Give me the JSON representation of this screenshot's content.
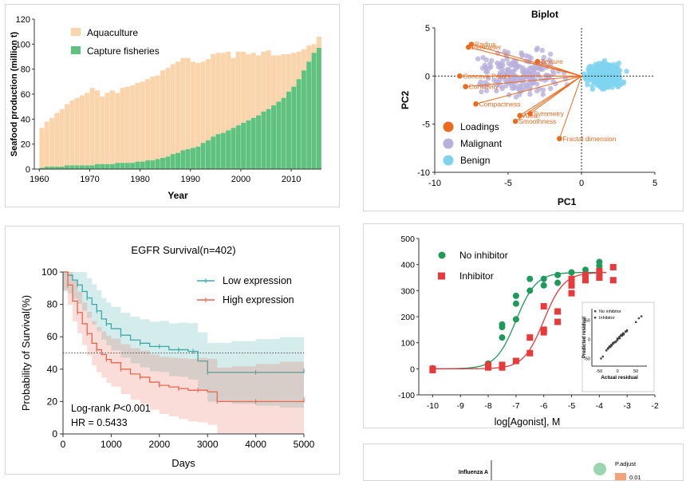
{
  "chart_data": [
    {
      "type": "area",
      "id": "seafood",
      "title": "",
      "xlabel": "Year",
      "ylabel": "Seafood production (million t)",
      "xlim": [
        1959,
        2016
      ],
      "ylim": [
        0,
        120
      ],
      "xticks": [
        "1960",
        "1970",
        "1980",
        "1990",
        "2000",
        "2010"
      ],
      "yticks": [
        "0",
        "20",
        "40",
        "60",
        "80",
        "100",
        "120"
      ],
      "colors": {
        "aquaculture": "#fbd4ab",
        "capture": "#5fc27e"
      },
      "legend": [
        {
          "name": "Aquaculture",
          "color": "#fbd4ab"
        },
        {
          "name": "Capture fisheries",
          "color": "#5fc27e"
        }
      ],
      "years": [
        1960,
        1961,
        1962,
        1963,
        1964,
        1965,
        1966,
        1967,
        1968,
        1969,
        1970,
        1971,
        1972,
        1973,
        1974,
        1975,
        1976,
        1977,
        1978,
        1979,
        1980,
        1981,
        1982,
        1983,
        1984,
        1985,
        1986,
        1987,
        1988,
        1989,
        1990,
        1991,
        1992,
        1993,
        1994,
        1995,
        1996,
        1997,
        1998,
        1999,
        2000,
        2001,
        2002,
        2003,
        2004,
        2005,
        2006,
        2007,
        2008,
        2009,
        2010,
        2011,
        2012,
        2013,
        2014,
        2015
      ],
      "capture": [
        1,
        2,
        2,
        2,
        2,
        3,
        3,
        3,
        3,
        3,
        3,
        4,
        4,
        4,
        4,
        5,
        5,
        5,
        5,
        6,
        6,
        7,
        7,
        8,
        9,
        10,
        12,
        13,
        15,
        16,
        17,
        18,
        21,
        23,
        26,
        28,
        29,
        31,
        33,
        35,
        37,
        39,
        41,
        43,
        46,
        48,
        51,
        54,
        57,
        62,
        66,
        72,
        79,
        86,
        93,
        97
      ],
      "total": [
        33,
        38,
        41,
        45,
        48,
        52,
        55,
        57,
        59,
        61,
        65,
        63,
        58,
        61,
        63,
        61,
        65,
        66,
        67,
        69,
        70,
        72,
        74,
        75,
        79,
        81,
        84,
        86,
        89,
        89,
        86,
        85,
        86,
        88,
        92,
        93,
        93,
        94,
        89,
        94,
        94,
        92,
        93,
        91,
        94,
        95,
        91,
        91,
        92,
        92,
        93,
        94,
        96,
        99,
        100,
        106
      ]
    },
    {
      "type": "scatter",
      "id": "biplot",
      "title": "Biplot",
      "xlabel": "PC1",
      "ylabel": "PC2",
      "xlim": [
        -10,
        5
      ],
      "ylim": [
        -10,
        5
      ],
      "xticks": [
        "-10",
        "-5",
        "0",
        "5"
      ],
      "yticks": [
        "5",
        "0",
        "-5",
        "-10"
      ],
      "legend": [
        {
          "name": "Loadings",
          "color": "#ec6a1e"
        },
        {
          "name": "Malignant",
          "color": "#b9b0dc"
        },
        {
          "name": "Benign",
          "color": "#7fd3ee"
        }
      ],
      "loadings": [
        {
          "name": "Radius",
          "x": -7.5,
          "y": 3.3
        },
        {
          "name": "Perimeter",
          "x": -7.7,
          "y": 3.0
        },
        {
          "name": "Texture",
          "x": -3.0,
          "y": 1.5
        },
        {
          "name": "Concave Points",
          "x": -8.3,
          "y": 0.0
        },
        {
          "name": "Concavity",
          "x": -7.9,
          "y": -1.1
        },
        {
          "name": "Compactness",
          "x": -7.2,
          "y": -2.9
        },
        {
          "name": "Area",
          "x": -4.2,
          "y": -4.1
        },
        {
          "name": "Smoothness",
          "x": -4.5,
          "y": -4.7
        },
        {
          "name": "Symmetry",
          "x": -3.5,
          "y": -3.9
        },
        {
          "name": "Fractal dimension",
          "x": -1.5,
          "y": -6.5
        }
      ]
    },
    {
      "type": "line",
      "id": "survival",
      "title": "EGFR Survival(n=402)",
      "xlabel": "Days",
      "ylabel": "Probability of Survival(%)",
      "xlim": [
        0,
        5000
      ],
      "ylim": [
        0,
        100
      ],
      "xticks": [
        "0",
        "1000",
        "2000",
        "3000",
        "4000",
        "5000"
      ],
      "yticks": [
        "0",
        "20",
        "40",
        "60",
        "80",
        "100"
      ],
      "annotation": {
        "logrank_prefix": "Log-rank ",
        "p_symbol": "P",
        "logrank_suffix": "<0.001",
        "hr": "HR = 0.5433"
      },
      "series": [
        {
          "name": "Low expression",
          "color": "#3aa9a7",
          "x": [
            0,
            100,
            200,
            300,
            400,
            500,
            600,
            700,
            800,
            900,
            1000,
            1200,
            1400,
            1600,
            1800,
            2000,
            2200,
            2400,
            2600,
            2700,
            2800,
            3000,
            3500,
            4000,
            4500,
            5000
          ],
          "y": [
            100,
            98,
            95,
            92,
            88,
            84,
            80,
            76,
            71,
            68,
            65,
            61,
            58,
            56,
            54,
            54,
            52,
            52,
            51,
            51,
            45,
            38,
            38,
            38,
            38,
            39
          ]
        },
        {
          "name": "High expression",
          "color": "#e8664d",
          "x": [
            0,
            100,
            200,
            300,
            400,
            500,
            600,
            700,
            800,
            900,
            1000,
            1200,
            1400,
            1600,
            1800,
            2000,
            2200,
            2400,
            2600,
            2800,
            3000,
            3200,
            3500,
            4000,
            4500,
            5000
          ],
          "y": [
            100,
            92,
            82,
            75,
            68,
            62,
            56,
            52,
            49,
            46,
            44,
            40,
            37,
            35,
            32,
            30,
            29,
            28,
            27,
            27,
            26,
            20,
            20,
            20,
            20,
            21
          ]
        }
      ],
      "median_line": 50
    },
    {
      "type": "scatter",
      "id": "dose",
      "title": "",
      "xlabel": "log[Agonist], M",
      "ylabel": "",
      "xlim": [
        -10.5,
        -2
      ],
      "ylim": [
        -100,
        500
      ],
      "xticks": [
        "-10",
        "-9",
        "-8",
        "-7",
        "-6",
        "-5",
        "-4",
        "-3",
        "-2"
      ],
      "yticks": [
        "-100",
        "0",
        "100",
        "200",
        "300",
        "400",
        "500"
      ],
      "series": [
        {
          "name": "No inhibitor",
          "color": "#1d9a5c",
          "marker": "circle",
          "x": [
            -10,
            -10,
            -8,
            -8,
            -7.5,
            -7.5,
            -7.5,
            -7,
            -7,
            -7,
            -6.5,
            -6.5,
            -6,
            -6,
            -5.5,
            -5.5,
            -5,
            -5,
            -4.5,
            -4,
            -4,
            -4
          ],
          "y": [
            2,
            -5,
            10,
            20,
            120,
            160,
            170,
            190,
            250,
            280,
            300,
            345,
            320,
            345,
            330,
            360,
            340,
            370,
            380,
            360,
            395,
            410
          ],
          "ec50": -7.0,
          "top": 370,
          "bottom": 0
        },
        {
          "name": "Inhibitor",
          "color": "#e8393b",
          "marker": "square",
          "x": [
            -10,
            -10,
            -8,
            -8,
            -7.5,
            -7.5,
            -7,
            -6.5,
            -6.5,
            -6,
            -6,
            -6,
            -5.5,
            -5.5,
            -5,
            -5,
            -5,
            -4.5,
            -4.5,
            -4,
            -4,
            -3.5,
            -3.5
          ],
          "y": [
            0,
            -5,
            5,
            15,
            5,
            15,
            30,
            60,
            120,
            140,
            150,
            240,
            180,
            220,
            290,
            320,
            345,
            340,
            360,
            350,
            375,
            340,
            390
          ],
          "ec50": -6.0,
          "top": 370,
          "bottom": 0
        }
      ],
      "inset": {
        "xlabel": "Actual residual",
        "ylabel": "Predicted residual",
        "xticks": [
          "-50",
          "0",
          "50"
        ],
        "yticks": [
          "50",
          "0",
          "-50"
        ],
        "legend": [
          "No inhibitor",
          "Inhibitor"
        ]
      }
    },
    {
      "type": "scatter",
      "id": "enrichment",
      "category": "Influenza A",
      "legend_title": "P.adjust",
      "legend_value": "0.01"
    }
  ]
}
